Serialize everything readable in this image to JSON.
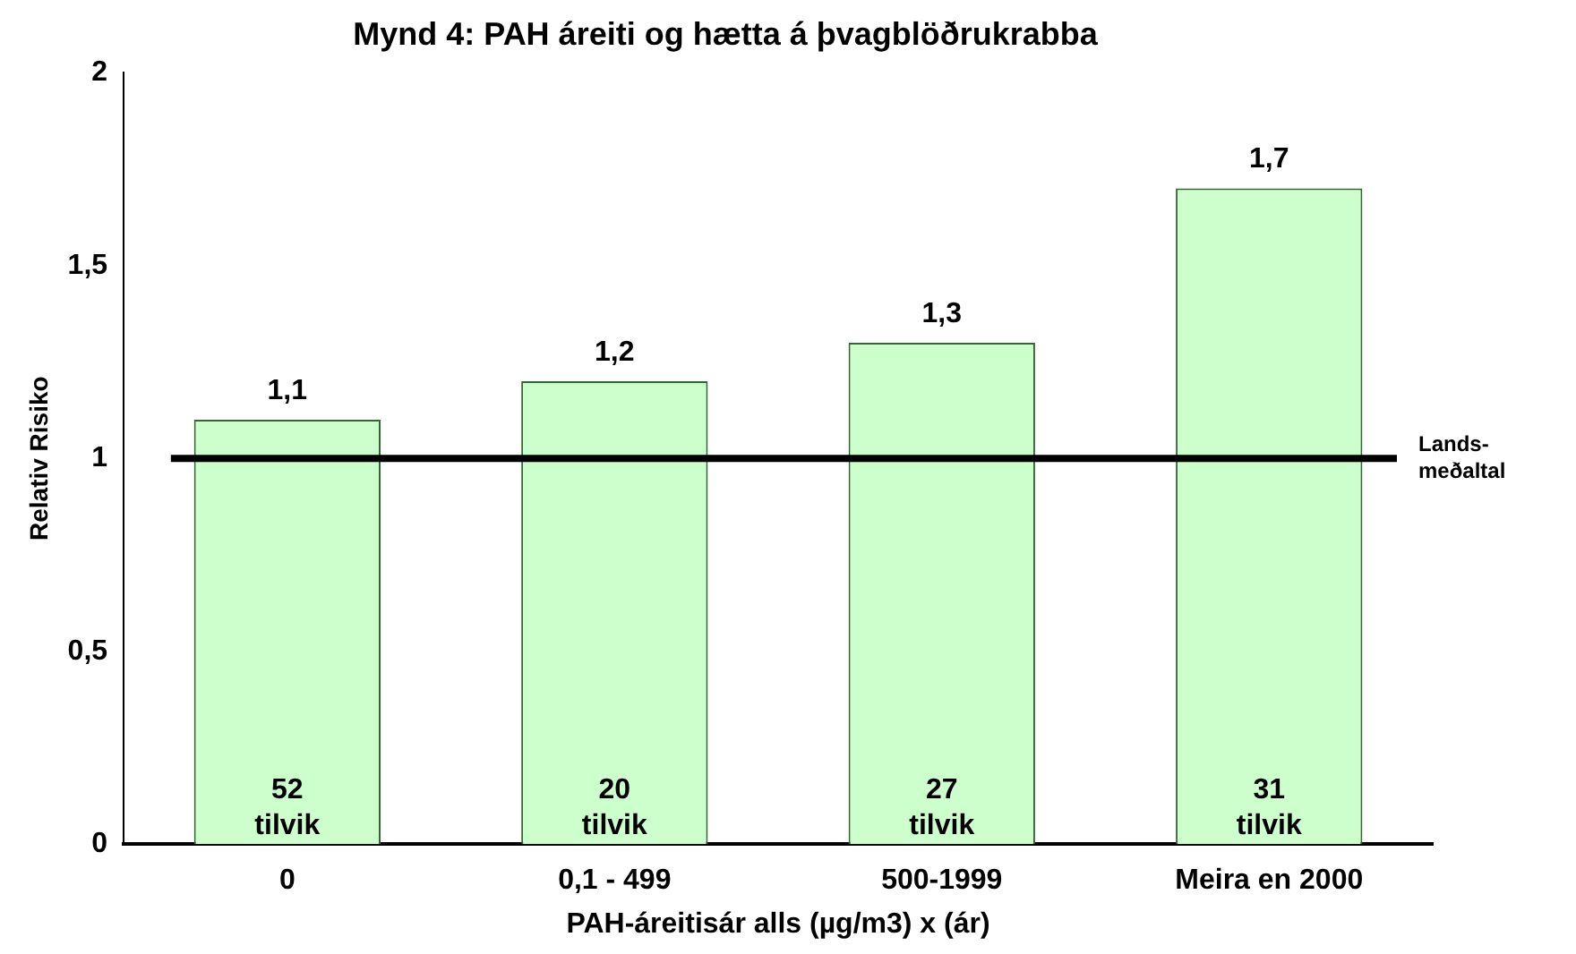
{
  "chart_data": {
    "type": "bar",
    "title": "Mynd 4: PAH áreiti og hætta á þvagblöðrukrabba",
    "xlabel": "PAH-áreitisár alls (µg/m3) x (ár)",
    "ylabel": "Relativ Risiko",
    "categories": [
      "0",
      "0,1 - 499",
      "500-1999",
      "Meira en 2000"
    ],
    "values": [
      1.1,
      1.2,
      1.3,
      1.7
    ],
    "value_labels": [
      "1,1",
      "1,2",
      "1,3",
      "1,7"
    ],
    "color": "#ccffcc",
    "ylim": [
      0,
      2
    ],
    "yticks": [
      0,
      {
        "value": 0.5,
        "label": "0,5"
      },
      1,
      {
        "value": 1.5,
        "label": "1,5"
      },
      2
    ],
    "grid": false,
    "legend": false,
    "ref_lines": [
      {
        "axis": "y",
        "value": 1,
        "label": "Lands-\nmeðaltal",
        "color": "#000000"
      }
    ],
    "annotations": [
      {
        "text": "52\ntilvik",
        "x": "0",
        "y": 0
      },
      {
        "text": "20\ntilvik",
        "x": "0,1 - 499",
        "y": 0
      },
      {
        "text": "27\ntilvik",
        "x": "500-1999",
        "y": 0
      },
      {
        "text": "31\ntilvik",
        "x": "Meira en 2000",
        "y": 0
      }
    ]
  }
}
